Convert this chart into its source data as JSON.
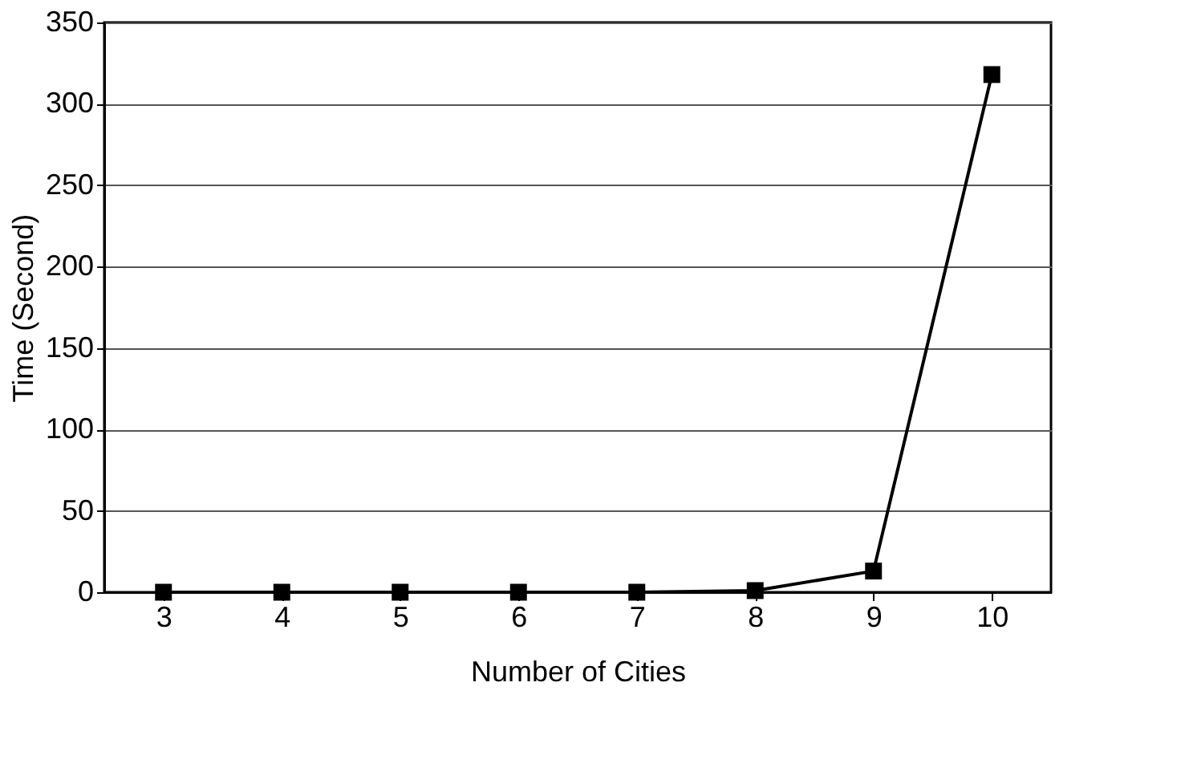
{
  "chart_data": {
    "type": "line",
    "xlabel": "Number of Cities",
    "ylabel": "Time (Second)",
    "categories": [
      "3",
      "4",
      "5",
      "6",
      "7",
      "8",
      "9",
      "10"
    ],
    "series": [
      {
        "color": "#000000",
        "values": [
          0,
          0,
          0,
          0,
          0,
          1,
          13,
          318
        ]
      }
    ],
    "ylim": [
      0,
      350
    ],
    "yticks": [
      0,
      50,
      100,
      150,
      200,
      250,
      300,
      350
    ],
    "grid": "y",
    "marker": "square",
    "line_style": "solid",
    "legend": false
  }
}
